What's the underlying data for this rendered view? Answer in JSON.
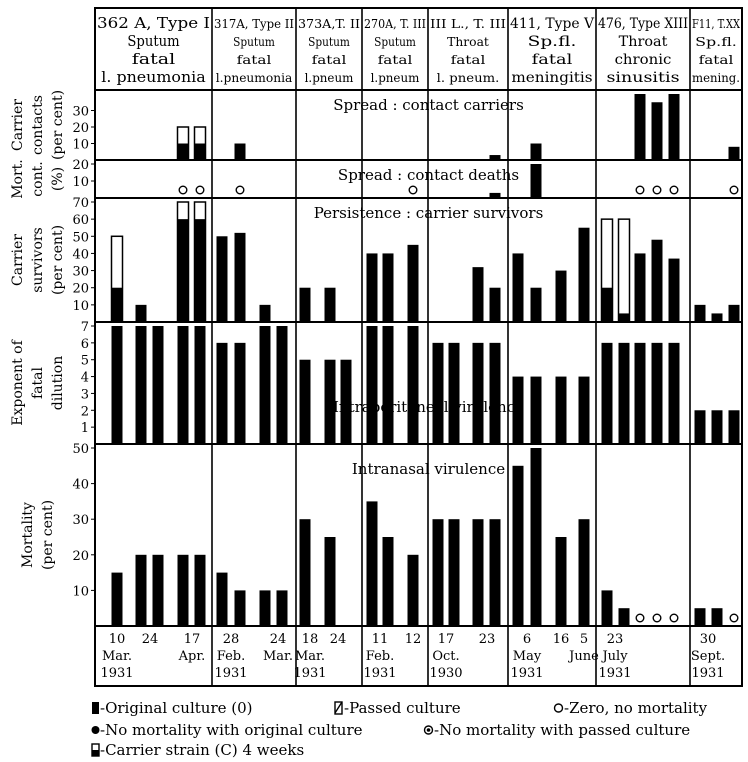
{
  "chart_data": {
    "type": "bar",
    "strains": [
      {
        "id": "362A",
        "lines": [
          "362 A, Type I",
          "Sputum",
          "fatal",
          "l. pneumonia"
        ]
      },
      {
        "id": "317A",
        "lines": [
          "317A, Type II",
          "Sputum",
          "fatal",
          "l.pneumonia"
        ]
      },
      {
        "id": "373A",
        "lines": [
          "373A,T. II",
          "Sputum",
          "fatal",
          "l.pneum"
        ]
      },
      {
        "id": "270A",
        "lines": [
          "270A, T. III",
          "Sputum",
          "fatal",
          "l.pneum"
        ]
      },
      {
        "id": "IIIL",
        "lines": [
          "III L., T. III",
          "Throat",
          "fatal",
          "l. pneum."
        ]
      },
      {
        "id": "411",
        "lines": [
          "411, Type V",
          "Sp.fl.",
          "fatal",
          "meningitis"
        ]
      },
      {
        "id": "476",
        "lines": [
          "476, Type XIII",
          "Throat",
          "chronic",
          "sinusitis"
        ]
      },
      {
        "id": "F11",
        "lines": [
          "F11, T.XX",
          "Sp.fl.",
          "fatal",
          "mening."
        ]
      }
    ],
    "dates": [
      {
        "day": "10",
        "month": "Mar.",
        "year": "1931"
      },
      {
        "day": "24",
        "month": "",
        "year": ""
      },
      {
        "day": "17",
        "month": "Apr.",
        "year": ""
      },
      {
        "day": "28",
        "month": "Feb.",
        "year": "1931"
      },
      {
        "day": "24",
        "month": "Mar.",
        "year": ""
      },
      {
        "day": "18",
        "month": "Mar.",
        "year": "1931"
      },
      {
        "day": "24",
        "month": "",
        "year": ""
      },
      {
        "day": "11",
        "month": "Feb.",
        "year": "1931"
      },
      {
        "day": "12",
        "month": "",
        "year": ""
      },
      {
        "day": "17",
        "month": "Oct.",
        "year": "1930"
      },
      {
        "day": "23",
        "month": "",
        "year": ""
      },
      {
        "day": "6",
        "month": "May",
        "year": "1931"
      },
      {
        "day": "16",
        "month": "",
        "year": ""
      },
      {
        "day": "5",
        "month": "June",
        "year": ""
      },
      {
        "day": "23",
        "month": "July",
        "year": "1931"
      },
      {
        "day": "30",
        "month": "Sept.",
        "year": "1931"
      }
    ],
    "panels": [
      {
        "id": "contact_carriers",
        "ylabel": [
          "Carrier",
          "contacts",
          "(per cent)"
        ],
        "title": "Spread : contact carriers",
        "ylim": [
          0,
          40
        ],
        "ticks": [
          10,
          20,
          30
        ],
        "bars": [
          {
            "x": 183,
            "v": 10,
            "c": 20
          },
          {
            "x": 200,
            "v": 10,
            "c": 20
          },
          {
            "x": 240,
            "v": 10
          },
          {
            "x": 495,
            "v": 3
          },
          {
            "x": 536,
            "v": 10
          },
          {
            "x": 640,
            "v": 40
          },
          {
            "x": 657,
            "v": 35
          },
          {
            "x": 674,
            "v": 40
          },
          {
            "x": 734,
            "v": 8
          }
        ],
        "zeros": []
      },
      {
        "id": "contact_deaths",
        "ylabel": [
          "Mort.",
          "cont.",
          "(%)"
        ],
        "title": "Spread : contact deaths",
        "ylim": [
          0,
          20
        ],
        "ticks": [
          10,
          20
        ],
        "bars": [
          {
            "x": 495,
            "v": 3
          },
          {
            "x": 536,
            "v": 20
          }
        ],
        "zeros": [
          183,
          200,
          240,
          413,
          640,
          657,
          674,
          734
        ]
      },
      {
        "id": "carrier_survivors",
        "ylabel": [
          "Carrier",
          "survivors",
          "(per cent)"
        ],
        "title": "Persistence : carrier survivors",
        "ylim": [
          0,
          70
        ],
        "ticks": [
          10,
          20,
          30,
          40,
          50,
          60,
          70
        ],
        "bars": [
          {
            "x": 117,
            "v": 20,
            "c": 50
          },
          {
            "x": 141,
            "v": 10
          },
          {
            "x": 183,
            "v": 60,
            "c": 70
          },
          {
            "x": 200,
            "v": 60,
            "c": 70
          },
          {
            "x": 222,
            "v": 50
          },
          {
            "x": 240,
            "v": 52
          },
          {
            "x": 265,
            "v": 10
          },
          {
            "x": 305,
            "v": 20
          },
          {
            "x": 330,
            "v": 20
          },
          {
            "x": 372,
            "v": 40
          },
          {
            "x": 388,
            "v": 40
          },
          {
            "x": 413,
            "v": 45
          },
          {
            "x": 478,
            "v": 32
          },
          {
            "x": 495,
            "v": 20
          },
          {
            "x": 518,
            "v": 40
          },
          {
            "x": 536,
            "v": 20
          },
          {
            "x": 561,
            "v": 30
          },
          {
            "x": 584,
            "v": 55
          },
          {
            "x": 607,
            "v": 20,
            "c": 60
          },
          {
            "x": 624,
            "v": 5,
            "c": 60
          },
          {
            "x": 640,
            "v": 40
          },
          {
            "x": 657,
            "v": 48
          },
          {
            "x": 674,
            "v": 37
          },
          {
            "x": 700,
            "v": 10
          },
          {
            "x": 717,
            "v": 5
          },
          {
            "x": 734,
            "v": 10
          }
        ],
        "zeros": []
      },
      {
        "id": "fatal_dilution",
        "ylabel": [
          "Exponent of",
          "fatal",
          "dilution"
        ],
        "title": "Intraperitoneal virulence",
        "ylim": [
          0,
          7
        ],
        "ticks": [
          1,
          2,
          3,
          4,
          5,
          6,
          7
        ],
        "bars": [
          {
            "x": 117,
            "v": 7
          },
          {
            "x": 141,
            "v": 7
          },
          {
            "x": 158,
            "v": 7
          },
          {
            "x": 183,
            "v": 7
          },
          {
            "x": 200,
            "v": 7
          },
          {
            "x": 222,
            "v": 6
          },
          {
            "x": 240,
            "v": 6
          },
          {
            "x": 265,
            "v": 7
          },
          {
            "x": 282,
            "v": 7
          },
          {
            "x": 305,
            "v": 5
          },
          {
            "x": 330,
            "v": 5
          },
          {
            "x": 346,
            "v": 5
          },
          {
            "x": 372,
            "v": 7
          },
          {
            "x": 388,
            "v": 7
          },
          {
            "x": 413,
            "v": 7
          },
          {
            "x": 438,
            "v": 6
          },
          {
            "x": 454,
            "v": 6
          },
          {
            "x": 478,
            "v": 6
          },
          {
            "x": 495,
            "v": 6
          },
          {
            "x": 518,
            "v": 4
          },
          {
            "x": 536,
            "v": 4
          },
          {
            "x": 561,
            "v": 4
          },
          {
            "x": 584,
            "v": 4
          },
          {
            "x": 607,
            "v": 6
          },
          {
            "x": 624,
            "v": 6
          },
          {
            "x": 640,
            "v": 6
          },
          {
            "x": 657,
            "v": 6
          },
          {
            "x": 674,
            "v": 6
          },
          {
            "x": 700,
            "v": 2
          },
          {
            "x": 717,
            "v": 2
          },
          {
            "x": 734,
            "v": 2
          }
        ],
        "zeros": []
      },
      {
        "id": "intranasal",
        "ylabel": [
          "Mortality",
          "(per cent)"
        ],
        "title": "Intranasal virulence",
        "ylim": [
          0,
          50
        ],
        "ticks": [
          10,
          20,
          30,
          40,
          50
        ],
        "bars": [
          {
            "x": 117,
            "v": 15
          },
          {
            "x": 141,
            "v": 20
          },
          {
            "x": 158,
            "v": 20
          },
          {
            "x": 183,
            "v": 20
          },
          {
            "x": 200,
            "v": 20
          },
          {
            "x": 222,
            "v": 15
          },
          {
            "x": 240,
            "v": 10
          },
          {
            "x": 265,
            "v": 10
          },
          {
            "x": 282,
            "v": 10
          },
          {
            "x": 305,
            "v": 30
          },
          {
            "x": 330,
            "v": 25
          },
          {
            "x": 372,
            "v": 35
          },
          {
            "x": 388,
            "v": 25
          },
          {
            "x": 413,
            "v": 20
          },
          {
            "x": 438,
            "v": 30
          },
          {
            "x": 454,
            "v": 30
          },
          {
            "x": 478,
            "v": 30
          },
          {
            "x": 495,
            "v": 30
          },
          {
            "x": 518,
            "v": 45
          },
          {
            "x": 536,
            "v": 50
          },
          {
            "x": 561,
            "v": 25
          },
          {
            "x": 584,
            "v": 30
          },
          {
            "x": 607,
            "v": 10
          },
          {
            "x": 624,
            "v": 5
          },
          {
            "x": 700,
            "v": 5
          },
          {
            "x": 717,
            "v": 5
          }
        ],
        "zeros": [
          640,
          657,
          674,
          734
        ]
      }
    ],
    "legend": [
      "-Original culture (0)",
      "-Passed culture",
      "-Zero, no mortality",
      "-No mortality with original culture",
      "-No mortality with passed culture",
      "-Carrier strain (C) 4 weeks"
    ]
  }
}
